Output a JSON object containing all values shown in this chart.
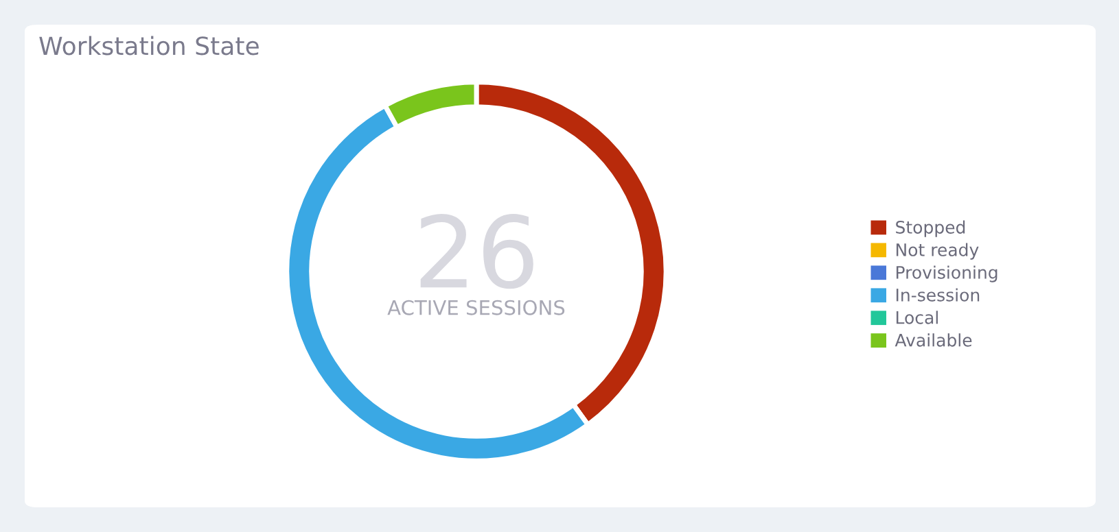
{
  "chart_data": {
    "type": "donut",
    "title": "Workstation State",
    "categories": [
      "Stopped",
      "Not ready",
      "Provisioning",
      "In-session",
      "Local",
      "Available"
    ],
    "values": [
      40,
      0,
      0,
      52,
      0,
      8
    ],
    "colors": [
      "#b82a0b",
      "#f5b800",
      "#4a78d8",
      "#3aa8e4",
      "#22c79a",
      "#7ac51c"
    ],
    "annotations": [
      "26",
      "ACTIVE SESSIONS"
    ],
    "legend": "right"
  }
}
